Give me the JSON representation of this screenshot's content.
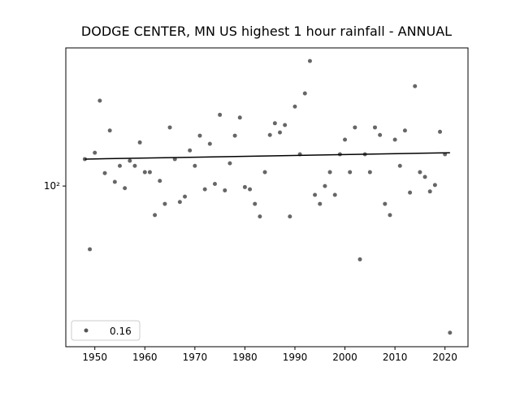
{
  "chart_data": {
    "type": "scatter",
    "title": "DODGE CENTER, MN US highest 1 hour rainfall - ANNUAL",
    "log_y": true,
    "grid": false,
    "legend_position": "lower left",
    "xlim": [
      1944.2,
      2024.6
    ],
    "ylim": [
      21.9,
      369
    ],
    "xticks": [
      1950,
      1960,
      1970,
      1980,
      1990,
      2000,
      2010,
      2020
    ],
    "yticks": [
      {
        "value": 100,
        "label": "10²"
      }
    ],
    "series": [
      {
        "name": "0.16",
        "color": "#555555",
        "x": [
          1948,
          1949,
          1950,
          1951,
          1952,
          1953,
          1954,
          1955,
          1956,
          1957,
          1958,
          1959,
          1960,
          1961,
          1962,
          1963,
          1964,
          1965,
          1966,
          1967,
          1968,
          1969,
          1970,
          1971,
          1972,
          1973,
          1974,
          1975,
          1976,
          1977,
          1978,
          1979,
          1980,
          1981,
          1982,
          1983,
          1984,
          1985,
          1986,
          1987,
          1988,
          1989,
          1990,
          1991,
          1992,
          1993,
          1994,
          1995,
          1996,
          1997,
          1998,
          1999,
          2000,
          2001,
          2002,
          2003,
          2004,
          2005,
          2006,
          2007,
          2008,
          2009,
          2010,
          2011,
          2012,
          2013,
          2014,
          2015,
          2016,
          2017,
          2018,
          2019,
          2020,
          2021
        ],
        "values": [
          129,
          55,
          137,
          224,
          113,
          169,
          104,
          121,
          98,
          127,
          121,
          151,
          114,
          114,
          76,
          105,
          84.5,
          174,
          129,
          86,
          90.5,
          140,
          121,
          161,
          97,
          149,
          102,
          196,
          96,
          124,
          161,
          191,
          99,
          97,
          84.5,
          75,
          114,
          162,
          181,
          166,
          178,
          75,
          212,
          135,
          240,
          326,
          92,
          84.5,
          100,
          114,
          92,
          135,
          155,
          114,
          174,
          50,
          135,
          114,
          174,
          162,
          84.5,
          76,
          155,
          121,
          169,
          94,
          257,
          114,
          109,
          95,
          101,
          167,
          135,
          25
        ]
      },
      {
        "type": "line",
        "color": "#000000",
        "x": [
          1948,
          2021
        ],
        "values": [
          129,
          137
        ]
      }
    ]
  }
}
